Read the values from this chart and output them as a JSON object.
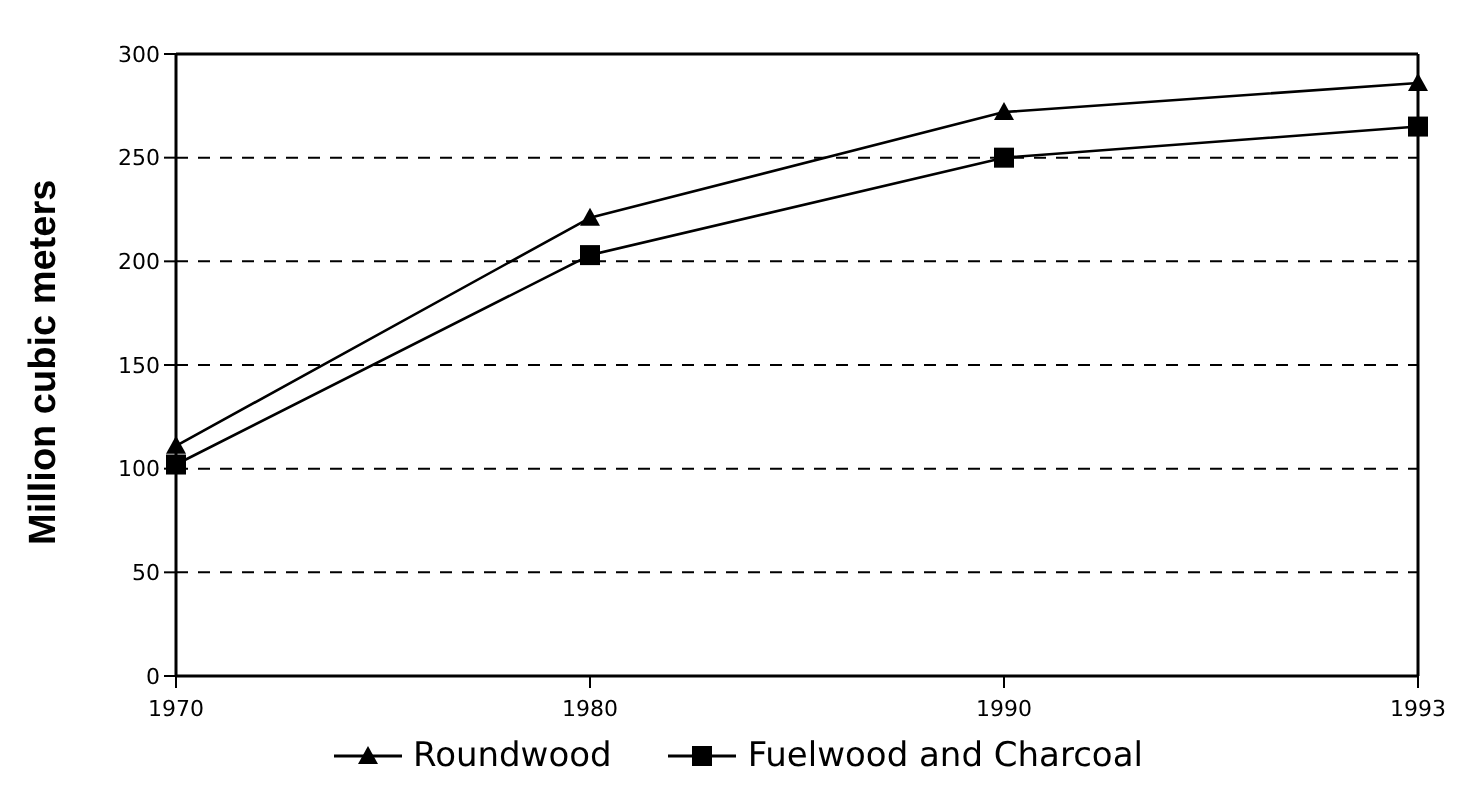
{
  "chart_data": {
    "type": "line",
    "ylabel": "Million cubic meters",
    "categories": [
      "1970",
      "1980",
      "1990",
      "1993"
    ],
    "series": [
      {
        "name": "Roundwood",
        "color": "#000000",
        "marker": "triangle",
        "values": [
          111,
          221,
          272,
          286
        ]
      },
      {
        "name": "Fuelwood and Charcoal",
        "color": "#000000",
        "marker": "square",
        "values": [
          102,
          203,
          250,
          265
        ]
      }
    ],
    "ylim": [
      0,
      300
    ],
    "yticks": [
      0,
      50,
      100,
      150,
      200,
      250,
      300
    ],
    "grid": "y",
    "legend": "bottom",
    "line_style": "solid"
  }
}
